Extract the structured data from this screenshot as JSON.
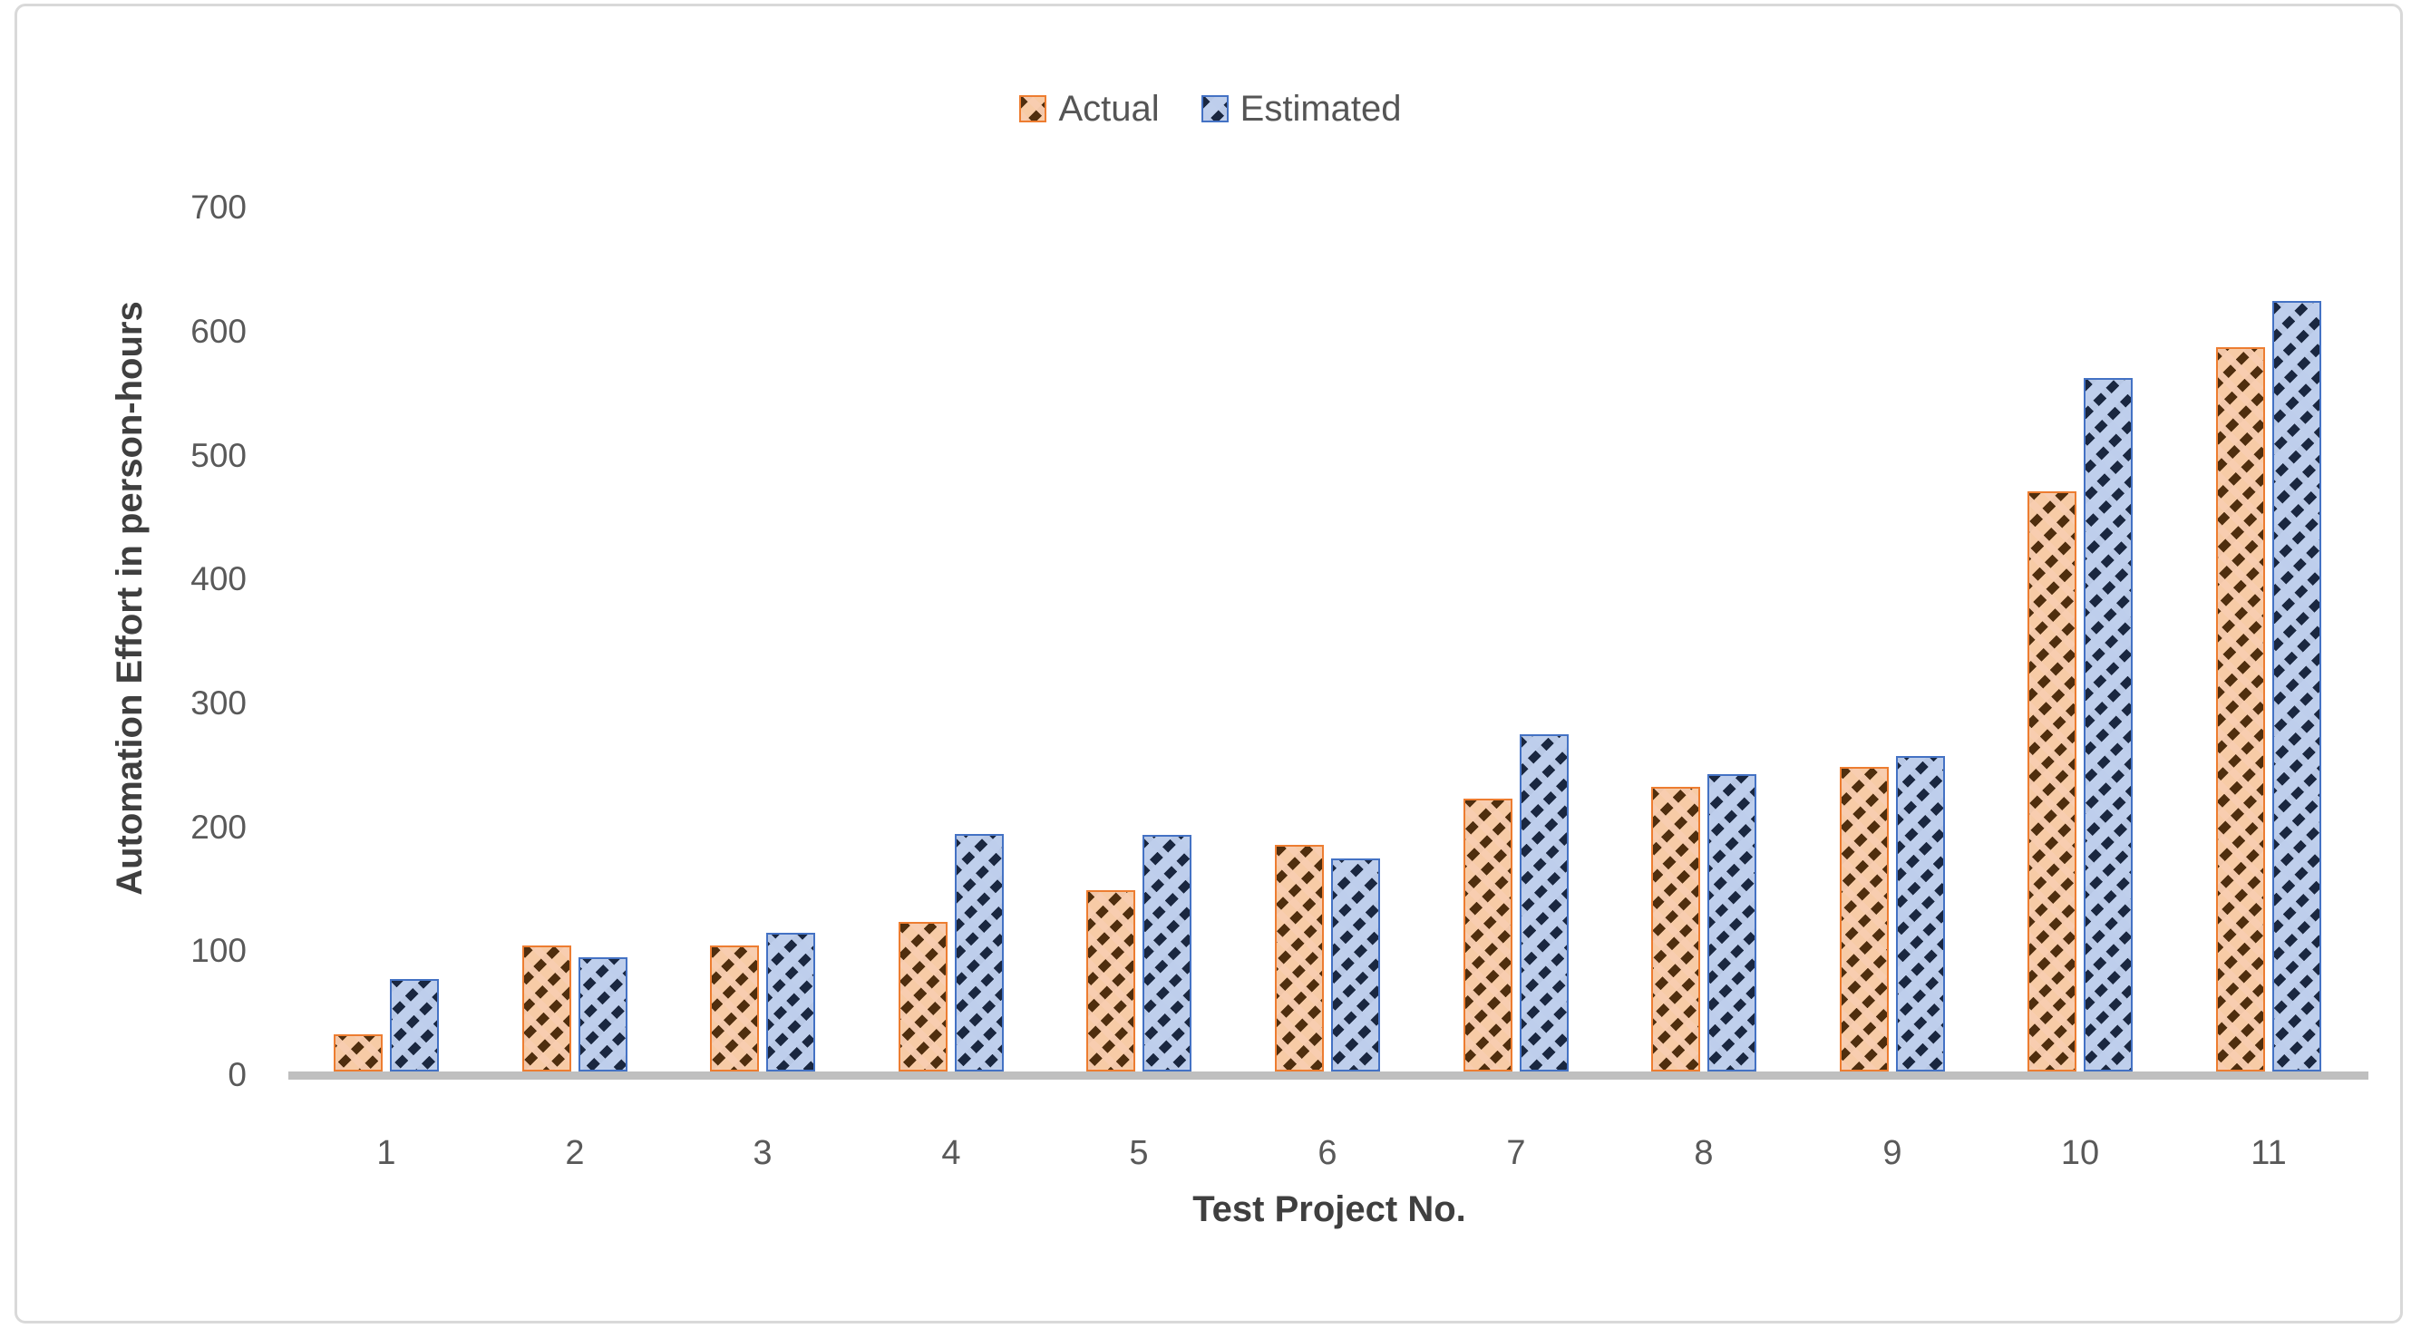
{
  "chart_data": {
    "type": "bar",
    "title": "",
    "categories": [
      "1",
      "2",
      "3",
      "4",
      "5",
      "6",
      "7",
      "8",
      "9",
      "10",
      "11"
    ],
    "series": [
      {
        "name": "Actual",
        "color": "#ed7d31",
        "values": [
          30,
          102,
          102,
          121,
          146,
          183,
          220,
          230,
          246,
          468,
          585
        ]
      },
      {
        "name": "Estimated",
        "color": "#4472c4",
        "values": [
          75,
          92,
          112,
          192,
          191,
          172,
          272,
          240,
          255,
          560,
          622
        ]
      }
    ],
    "xlabel": "Test Project No.",
    "ylabel": "Automation Effort in person-hours",
    "ylim": [
      0,
      700
    ],
    "yticks": [
      0,
      100,
      200,
      300,
      400,
      500,
      600,
      700
    ],
    "grid": "off",
    "legend_position": "top-center",
    "bar_style": "diagonal-hatch"
  },
  "colors": {
    "axis_line": "#bfbfbf",
    "tick_text": "#595959",
    "title_text": "#3f3f3f",
    "frame_border": "#d9d9d9"
  }
}
